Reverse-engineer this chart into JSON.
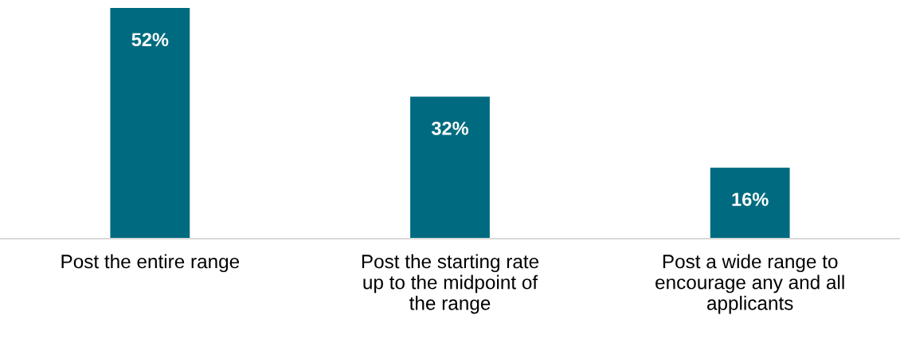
{
  "chart_data": {
    "type": "bar",
    "categories": [
      "Post the entire range",
      "Post the starting rate\nup to the midpoint of\nthe range",
      "Post a wide range to\nencourage any and all\napplicants"
    ],
    "values": [
      52,
      32,
      16
    ],
    "value_labels": [
      "52%",
      "32%",
      "16%"
    ],
    "color": "#006b80",
    "ylim": [
      0,
      52
    ],
    "grid": false,
    "legend": false
  }
}
